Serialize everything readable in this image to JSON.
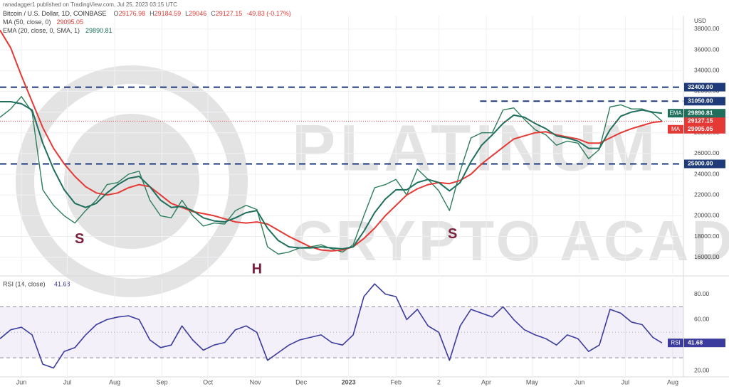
{
  "chart_data": [
    {
      "type": "line",
      "publisher": "ranadagger1 published on TradingView.com, Jul 25, 2023 03:15 UTC",
      "title": "Bitcoin / U.S. Dollar, 1D, COINBASE",
      "ohlc": [
        {
          "label": "O",
          "value": 29176.98
        },
        {
          "label": "H",
          "value": 29184.59
        },
        {
          "label": "L",
          "value": 29046.0
        },
        {
          "label": "C",
          "value": 29127.15
        }
      ],
      "change": "-49.83 (-0.17%)",
      "currency": "USD",
      "watermark": [
        "PLATINUM",
        "CRYPTO ACADEMY"
      ],
      "xlim": [
        -14,
        433
      ],
      "xticks": [
        {
          "value": 0,
          "label": "Jun"
        },
        {
          "value": 30,
          "label": "Jul"
        },
        {
          "value": 61,
          "label": "Aug"
        },
        {
          "value": 92,
          "label": "Sep"
        },
        {
          "value": 122,
          "label": "Oct"
        },
        {
          "value": 153,
          "label": "Nov"
        },
        {
          "value": 183,
          "label": "Dec"
        },
        {
          "value": 214,
          "label": "2023"
        },
        {
          "value": 245,
          "label": "Feb"
        },
        {
          "value": 273,
          "label": "2"
        },
        {
          "value": 304,
          "label": "Apr"
        },
        {
          "value": 334,
          "label": "May"
        },
        {
          "value": 365,
          "label": "Jun"
        },
        {
          "value": 395,
          "label": "Jul"
        },
        {
          "value": 426,
          "label": "Aug"
        }
      ],
      "ylim": [
        14400,
        38750
      ],
      "yticks": [
        {
          "value": 16000,
          "label": "16000.00"
        },
        {
          "value": 18000,
          "label": "18000.00"
        },
        {
          "value": 20000,
          "label": "20000.00"
        },
        {
          "value": 22000,
          "label": "22000.00"
        },
        {
          "value": 24000,
          "label": "24000.00"
        },
        {
          "value": 26000,
          "label": "26000.00"
        },
        {
          "value": 28000,
          "label": "28000.00"
        },
        {
          "value": 30000,
          "label": "30000.00"
        },
        {
          "value": 32000,
          "label": "32000.00"
        },
        {
          "value": 34000,
          "label": "34000.00"
        },
        {
          "value": 36000,
          "label": "36000.00"
        },
        {
          "value": 38000,
          "label": "38000.00"
        }
      ],
      "grid": true,
      "x": [
        -14,
        -7,
        0,
        7,
        14,
        21,
        28,
        35,
        42,
        49,
        56,
        63,
        70,
        77,
        84,
        91,
        98,
        105,
        112,
        119,
        126,
        133,
        140,
        147,
        154,
        161,
        168,
        175,
        182,
        189,
        196,
        203,
        210,
        217,
        224,
        231,
        238,
        245,
        252,
        259,
        266,
        273,
        280,
        287,
        294,
        301,
        308,
        315,
        322,
        329,
        336,
        343,
        350,
        357,
        364,
        371,
        378,
        385,
        392,
        399,
        406,
        413,
        419
      ],
      "series": [
        {
          "color": "#2e7d5b",
          "last": {
            "value": 29127.15,
            "label": "29127.15"
          },
          "tag_color": "#e53935",
          "values": [
            29500,
            30300,
            31500,
            30000,
            22500,
            21000,
            20000,
            19300,
            20500,
            21500,
            23000,
            23200,
            24000,
            24300,
            21500,
            20000,
            19800,
            21500,
            20000,
            19000,
            19300,
            19200,
            20500,
            21000,
            20600,
            17000,
            16300,
            16500,
            16900,
            17000,
            17200,
            16800,
            16500,
            17200,
            20000,
            22700,
            23000,
            23500,
            22000,
            24500,
            23500,
            22400,
            20500,
            24300,
            27500,
            28000,
            28000,
            30200,
            30400,
            29300,
            28300,
            27800,
            26800,
            27200,
            27000,
            25500,
            26400,
            30500,
            30700,
            30300,
            30300,
            29900,
            29127.15
          ]
        },
        {
          "name": "MA (50, close, 0)",
          "tag": "MA",
          "color": "#e53935",
          "last": {
            "value": 29095.05,
            "label": "29095.05"
          },
          "values": [
            37900,
            36200,
            33500,
            31000,
            28500,
            26500,
            25000,
            23800,
            22800,
            22200,
            22000,
            22200,
            22700,
            23000,
            22800,
            22000,
            21200,
            20800,
            20400,
            20200,
            20000,
            19700,
            19400,
            19300,
            19400,
            19200,
            18600,
            18000,
            17500,
            17000,
            16700,
            16600,
            16700,
            17000,
            17800,
            18800,
            20000,
            21000,
            22000,
            22600,
            23000,
            23200,
            23100,
            23400,
            24000,
            25000,
            25800,
            26600,
            27400,
            27700,
            28000,
            28100,
            27800,
            27600,
            27400,
            27000,
            27000,
            27500,
            28000,
            28400,
            28700,
            29000,
            29095.05
          ]
        },
        {
          "name": "EMA (20, close, 0, SMA, 1)",
          "tag": "EMA",
          "color": "#1f6f5c",
          "last": {
            "value": 29890.81,
            "label": "29890.81"
          },
          "values": [
            31000,
            31000,
            30800,
            30200,
            27000,
            24500,
            22500,
            21200,
            20800,
            21200,
            22200,
            23000,
            23600,
            23800,
            22800,
            21500,
            20800,
            20900,
            20500,
            19800,
            19500,
            19400,
            19800,
            20300,
            20500,
            18800,
            17600,
            17000,
            16900,
            16900,
            17000,
            16900,
            16800,
            17000,
            18500,
            20300,
            21600,
            22500,
            22500,
            23200,
            23500,
            23200,
            22400,
            23200,
            25200,
            26800,
            27800,
            28900,
            29700,
            29500,
            28900,
            28400,
            27700,
            27500,
            27200,
            26500,
            26500,
            28300,
            29600,
            30000,
            30200,
            30000,
            29890.81
          ]
        }
      ],
      "levels": [
        {
          "value": 32400,
          "label": "32400.00"
        },
        {
          "value": 31050,
          "label": "31050.00"
        },
        {
          "value": 25000,
          "label": "25000.00"
        }
      ],
      "level_color": "#1e3a78",
      "annotations": [
        {
          "text": "S",
          "x": 38,
          "y": 17700
        },
        {
          "text": "H",
          "x": 154,
          "y": 14800
        },
        {
          "text": "S",
          "x": 282,
          "y": 18200
        }
      ]
    },
    {
      "type": "line",
      "title": "RSI (14, close)",
      "tag": "RSI",
      "last": {
        "value": 41.68,
        "label": "41.68"
      },
      "color": "#3b3b9e",
      "xlim": [
        -14,
        433
      ],
      "ylim": [
        15,
        92
      ],
      "yticks": [
        {
          "value": 20,
          "label": "20.00"
        },
        {
          "value": 60,
          "label": "60.00"
        },
        {
          "value": 80,
          "label": "80.00"
        }
      ],
      "band": [
        30,
        70
      ],
      "midline": 50,
      "x": [
        -14,
        -7,
        0,
        7,
        14,
        21,
        28,
        35,
        42,
        49,
        56,
        63,
        70,
        77,
        84,
        91,
        98,
        105,
        112,
        119,
        126,
        133,
        140,
        147,
        154,
        161,
        168,
        175,
        182,
        189,
        196,
        203,
        210,
        217,
        224,
        231,
        238,
        245,
        252,
        259,
        266,
        273,
        280,
        287,
        294,
        301,
        308,
        315,
        322,
        329,
        336,
        343,
        350,
        357,
        364,
        371,
        378,
        385,
        392,
        399,
        406,
        413,
        419
      ],
      "values": [
        45,
        52,
        54,
        48,
        25,
        22,
        35,
        38,
        48,
        56,
        60,
        62,
        63,
        60,
        44,
        38,
        40,
        55,
        44,
        36,
        40,
        42,
        52,
        55,
        50,
        28,
        34,
        40,
        44,
        46,
        48,
        42,
        40,
        48,
        78,
        88,
        80,
        78,
        60,
        68,
        55,
        50,
        28,
        55,
        68,
        65,
        62,
        70,
        60,
        52,
        48,
        45,
        40,
        48,
        45,
        35,
        40,
        68,
        65,
        58,
        56,
        46,
        41.68
      ]
    }
  ]
}
